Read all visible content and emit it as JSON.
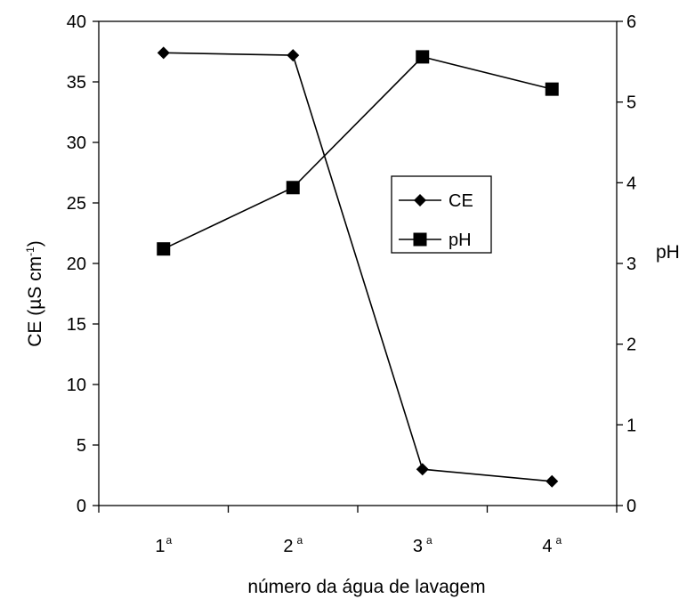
{
  "chart_data": {
    "type": "line",
    "categories": [
      "1",
      "2",
      "3",
      "4"
    ],
    "category_superscript": "a",
    "xlabel": "número da água de lavagem",
    "ylabel": "CE (µS cm",
    "ylabel_superscript": "-1",
    "ylabel_close": ")",
    "y2label": "pH",
    "ylim": [
      0,
      40
    ],
    "y2lim": [
      0,
      6
    ],
    "yticks": [
      "0",
      "5",
      "10",
      "15",
      "20",
      "25",
      "30",
      "35",
      "40"
    ],
    "y2ticks": [
      "0",
      "1",
      "2",
      "3",
      "4",
      "5",
      "6"
    ],
    "grid": false,
    "legend_position": "center-right",
    "series": [
      {
        "name": "CE",
        "axis": "left",
        "marker": "diamond",
        "color": "#000000",
        "values": [
          37.4,
          37.2,
          3.0,
          2.0
        ]
      },
      {
        "name": "pH",
        "axis": "right",
        "marker": "square",
        "color": "#000000",
        "values": [
          3.18,
          3.94,
          5.56,
          5.16
        ]
      }
    ]
  }
}
